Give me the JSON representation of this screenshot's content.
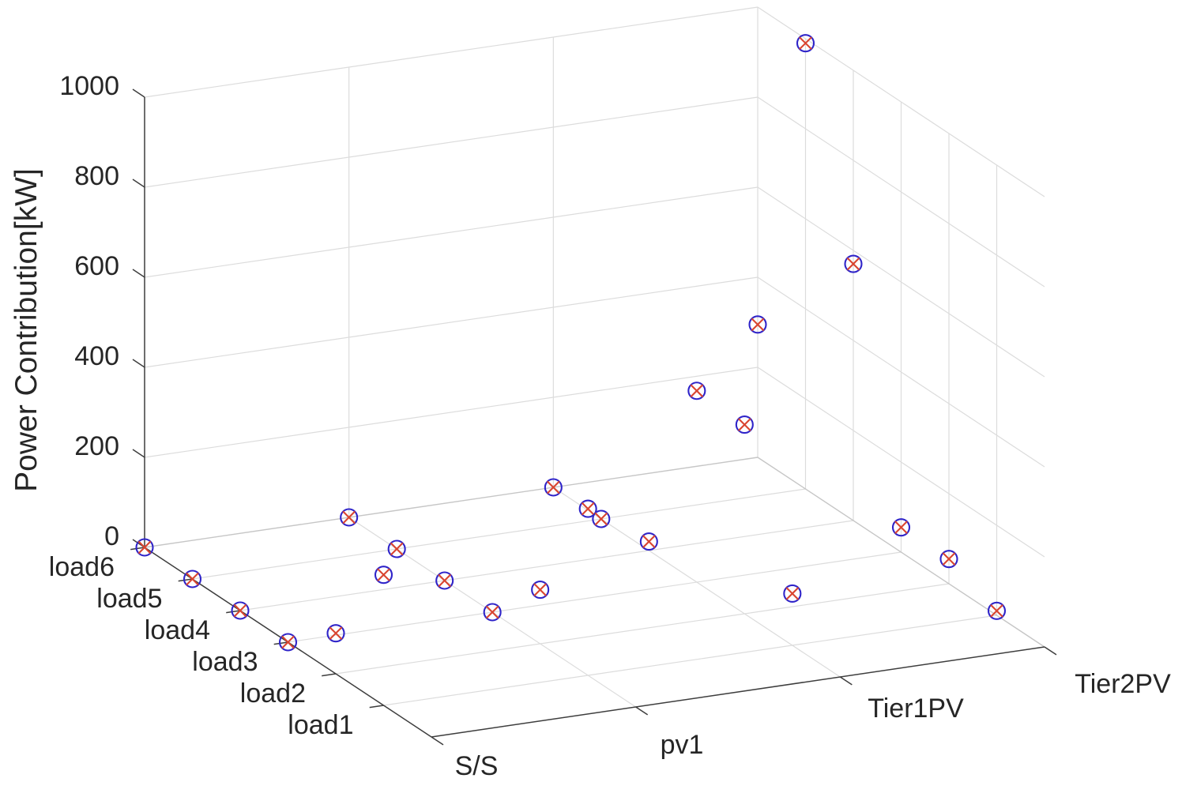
{
  "figure": {
    "z_axis": {
      "label": "Power Contribution[kW]",
      "ticks": [
        "0",
        "200",
        "400",
        "600",
        "800",
        "1000"
      ],
      "range": [
        0,
        1000
      ]
    },
    "y_axis": {
      "labels": [
        "load1",
        "load2",
        "load3",
        "load4",
        "load5",
        "load6"
      ]
    },
    "x_axis": {
      "labels": [
        "S/S",
        "pv1",
        "Tier1PV",
        "Tier2PV"
      ]
    }
  },
  "chart_data": {
    "type": "scatter",
    "projection": "3d",
    "x_categories": [
      "S/S",
      "pv1",
      "Tier1PV",
      "Tier2PV"
    ],
    "y_categories": [
      "load1",
      "load2",
      "load3",
      "load4",
      "load5",
      "load6"
    ],
    "series": [
      {
        "name": "S/S",
        "values_per_load": [
          290,
          90,
          0,
          0,
          0,
          0
        ]
      },
      {
        "name": "pv1",
        "values_per_load": [
          370,
          120,
          0,
          0,
          0,
          0
        ]
      },
      {
        "name": "Tier1PV",
        "values_per_load": [
          115,
          420,
          425,
          20,
          0,
          0
        ]
      },
      {
        "name": "Tier2PV",
        "values_per_load": [
          10,
          55,
          55,
          570,
          990,
          295
        ]
      }
    ],
    "title": "",
    "zlabel": "Power Contribution[kW]",
    "zlim": [
      0,
      1000
    ],
    "z_tick_step": 200,
    "grid": true,
    "legend": null,
    "marker": "circle-with-x"
  },
  "style": {
    "marker_circle_color": "#2f24c9",
    "marker_x_color": "#d94530",
    "grid_color": "#dcdcdc",
    "pane_edge_color": "#c6c6c6",
    "axis_color": "#3d3d3d",
    "text_color": "#262626",
    "background": "#ffffff"
  }
}
